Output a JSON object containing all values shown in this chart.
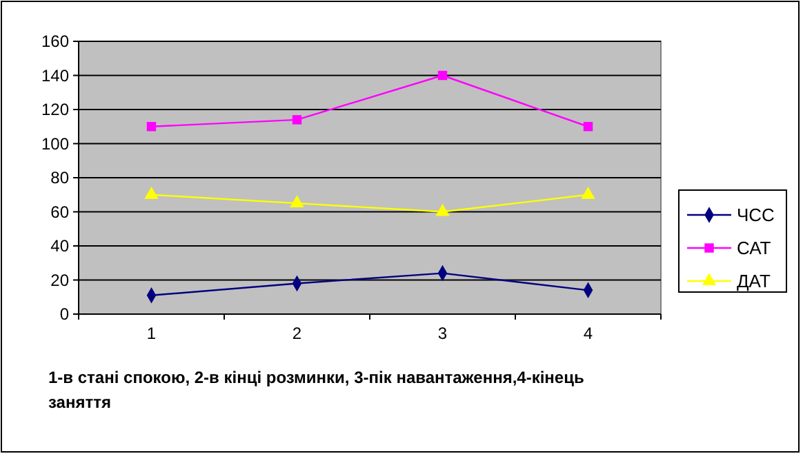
{
  "chart_data": {
    "type": "line",
    "categories": [
      "1",
      "2",
      "3",
      "4"
    ],
    "xlabel": "1-в стані спокою, 2-в кінці розминки, 3-пік навантаження,4-кінець заняття",
    "series": [
      {
        "name": "ЧСС",
        "color": "#000080",
        "marker": "diamond",
        "values": [
          11,
          18,
          24,
          14
        ]
      },
      {
        "name": "САТ",
        "color": "#ff00ff",
        "marker": "square",
        "values": [
          110,
          114,
          140,
          110
        ]
      },
      {
        "name": "ДАТ",
        "color": "#ffff00",
        "marker": "triangle",
        "values": [
          70,
          65,
          60,
          70
        ]
      }
    ],
    "ylim": [
      0,
      160
    ],
    "yticks": [
      0,
      20,
      40,
      60,
      80,
      100,
      120,
      140,
      160
    ],
    "grid": "y",
    "legend": "right"
  }
}
